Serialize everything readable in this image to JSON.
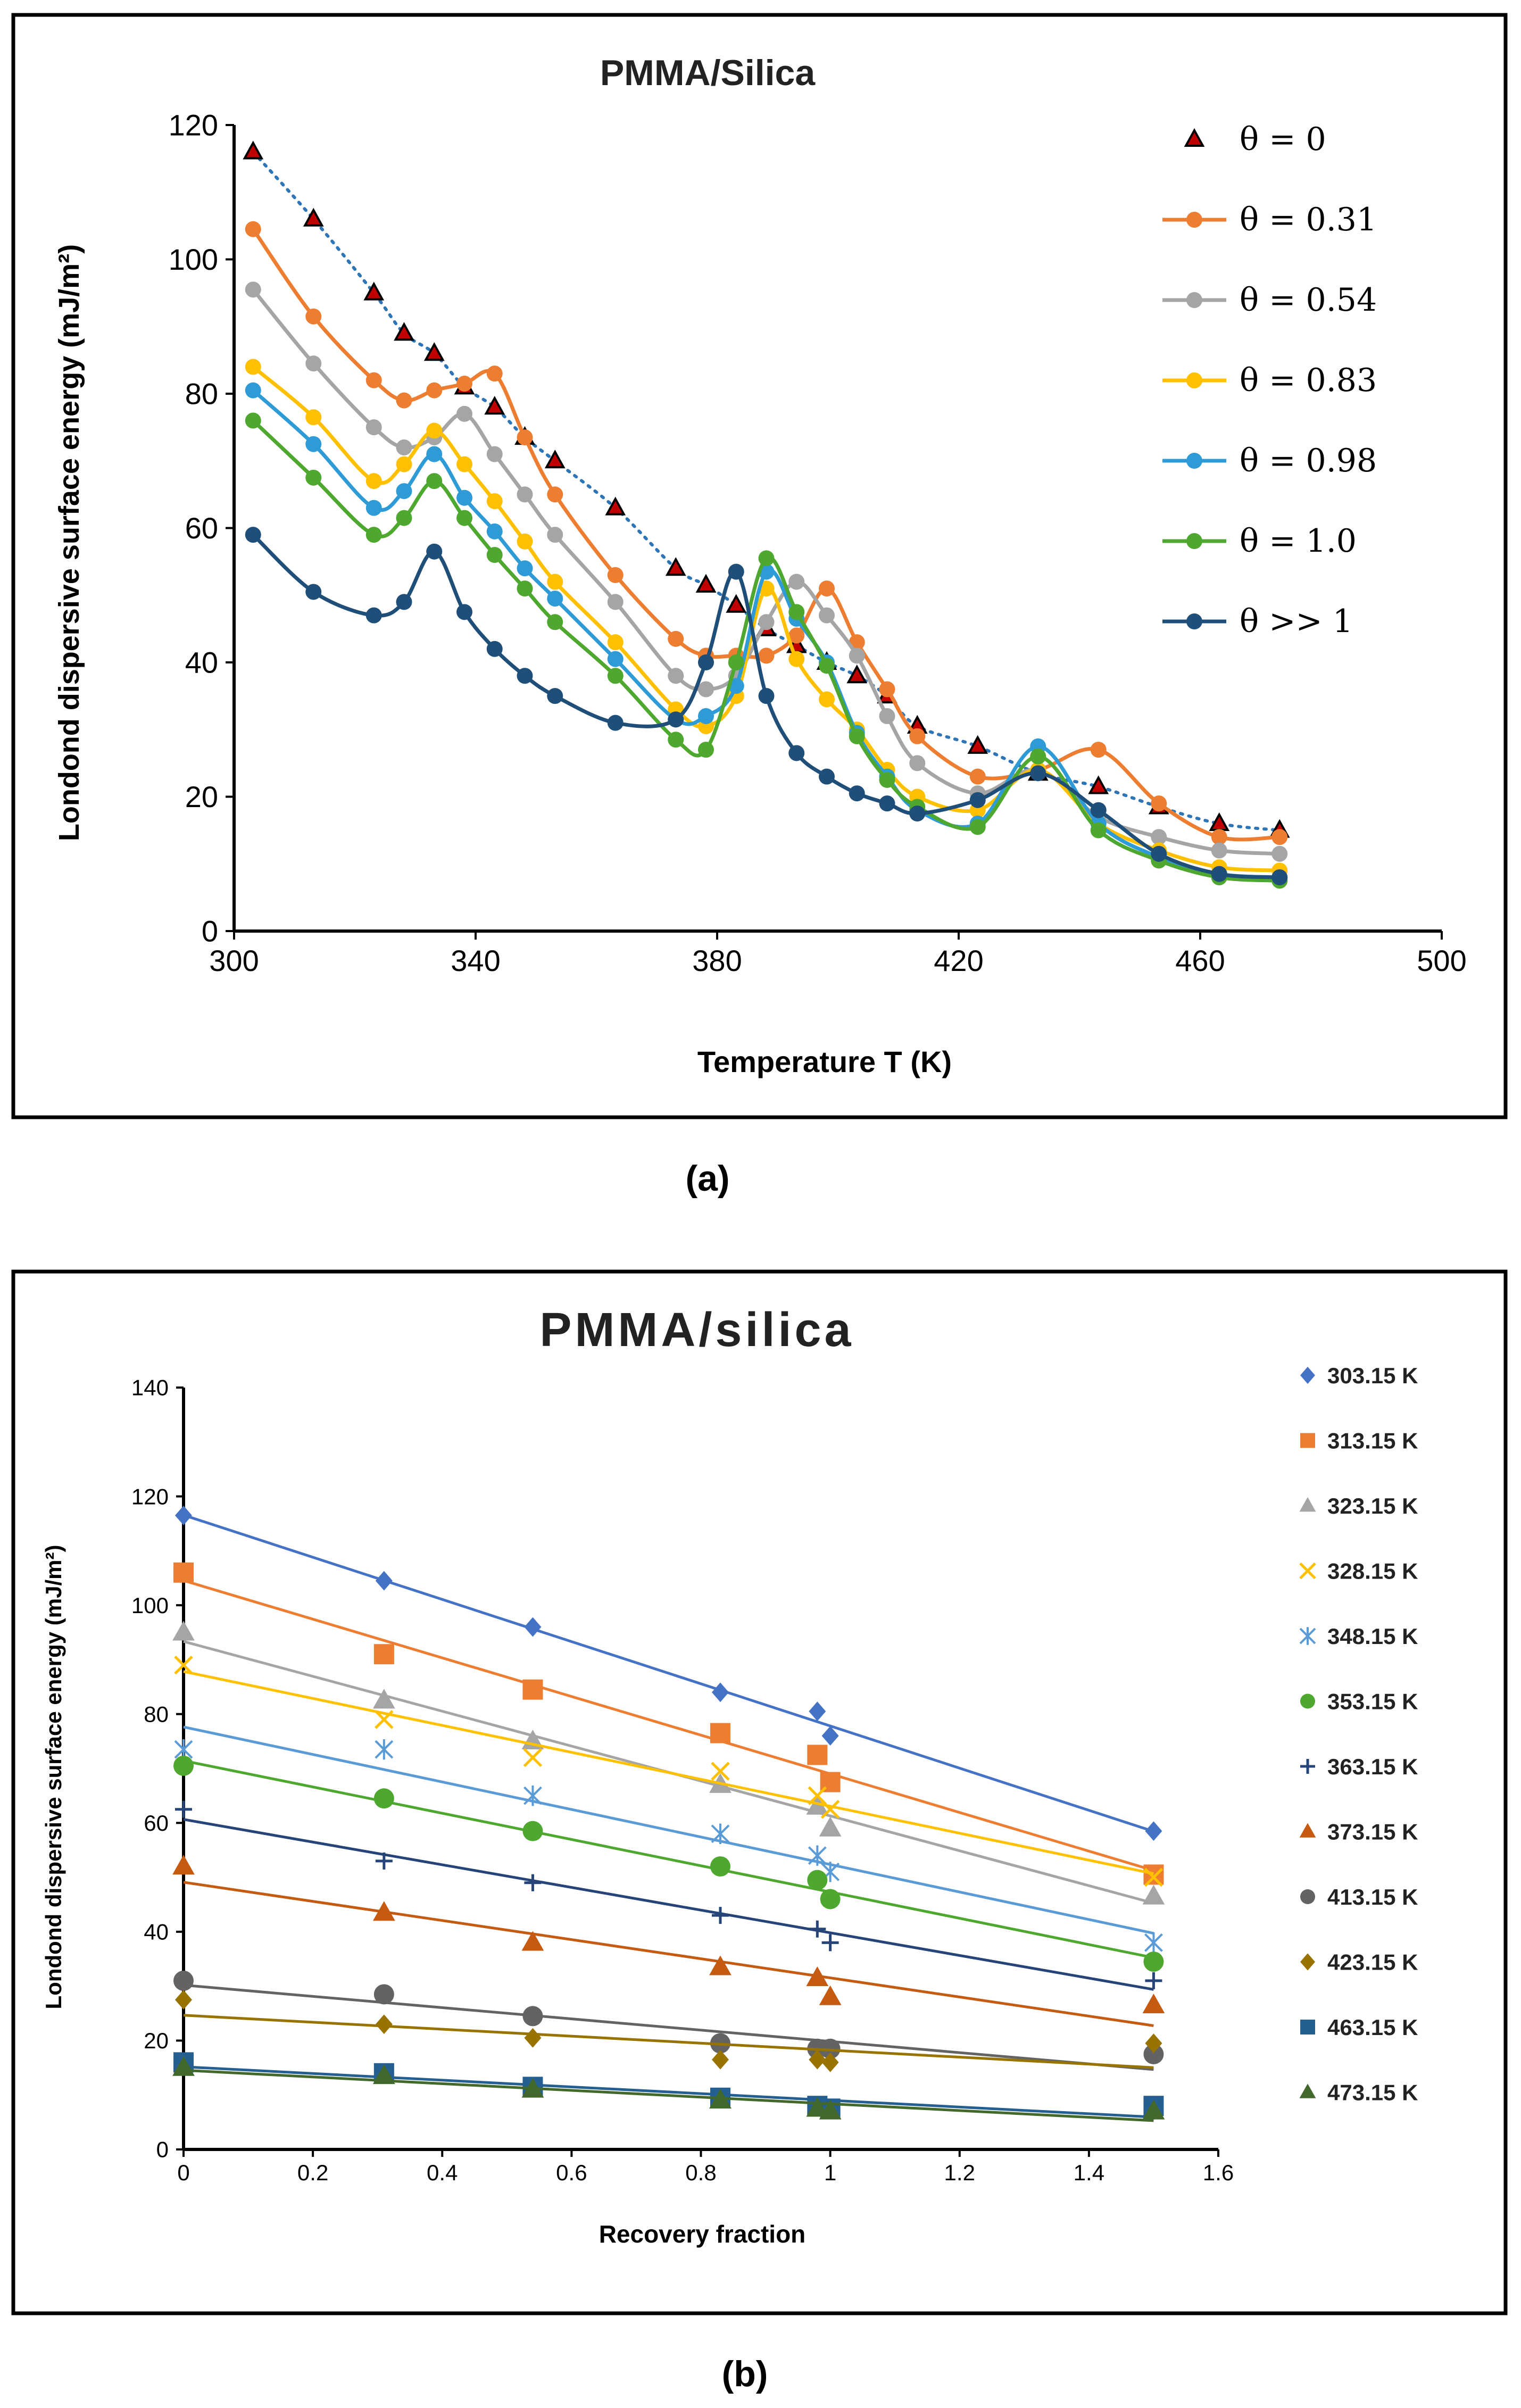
{
  "chart_data": [
    {
      "panel_label": "(a)",
      "type": "line",
      "title": "PMMA/Silica",
      "xlabel": "Temperature T (K)",
      "ylabel": "Londond dispersive surface energy (mJ/m²)",
      "xlim": [
        300,
        500
      ],
      "ylim": [
        0,
        120
      ],
      "x_ticks": [
        300,
        340,
        380,
        420,
        460,
        500
      ],
      "y_ticks": [
        0,
        20,
        40,
        60,
        80,
        100,
        120
      ],
      "legend_position": "right",
      "series": [
        {
          "name": "θ = 0",
          "color": "#c00000",
          "marker": "triangle",
          "line": "dotted-trend",
          "line_color": "#2e75b6",
          "x": [
            303.15,
            313.15,
            323.15,
            328.15,
            333.15,
            338.15,
            343.15,
            348.15,
            353.15,
            363.15,
            373.15,
            378.15,
            383.15,
            388.15,
            393.15,
            398.15,
            403.15,
            408.15,
            413.15,
            423.15,
            433.15,
            443.15,
            453.15,
            463.15,
            473.15
          ],
          "y": [
            116,
            106,
            95,
            89,
            86,
            81,
            78,
            73.5,
            70,
            63,
            54,
            51.5,
            48.5,
            45,
            42.5,
            40,
            38,
            35,
            30.5,
            27.5,
            23.5,
            21.5,
            18.5,
            16,
            15
          ]
        },
        {
          "name": "θ = 0.31",
          "color": "#ed7d31",
          "marker": "circle",
          "x": [
            303.15,
            313.15,
            323.15,
            328.15,
            333.15,
            338.15,
            343.15,
            348.15,
            353.15,
            363.15,
            373.15,
            378.15,
            383.15,
            388.15,
            393.15,
            398.15,
            403.15,
            408.15,
            413.15,
            423.15,
            433.15,
            443.15,
            453.15,
            463.15,
            473.15
          ],
          "y": [
            104.5,
            91.5,
            82,
            79,
            80.5,
            81.5,
            83,
            73.5,
            65,
            53,
            43.5,
            41,
            41,
            41,
            44,
            51,
            43,
            36,
            29,
            23,
            24,
            27,
            19,
            14,
            14
          ]
        },
        {
          "name": "θ = 0.54",
          "color": "#a5a5a5",
          "marker": "circle",
          "x": [
            303.15,
            313.15,
            323.15,
            328.15,
            333.15,
            338.15,
            343.15,
            348.15,
            353.15,
            363.15,
            373.15,
            378.15,
            383.15,
            388.15,
            393.15,
            398.15,
            403.15,
            408.15,
            413.15,
            423.15,
            433.15,
            443.15,
            453.15,
            463.15,
            473.15
          ],
          "y": [
            95.5,
            84.5,
            75,
            72,
            73.5,
            77,
            71,
            65,
            59,
            49,
            38,
            36,
            38,
            46,
            52,
            47,
            41,
            32,
            25,
            20.5,
            24,
            17,
            14,
            12,
            11.5
          ]
        },
        {
          "name": "θ = 0.83",
          "color": "#ffc000",
          "marker": "circle",
          "x": [
            303.15,
            313.15,
            323.15,
            328.15,
            333.15,
            338.15,
            343.15,
            348.15,
            353.15,
            363.15,
            373.15,
            378.15,
            383.15,
            388.15,
            393.15,
            398.15,
            403.15,
            408.15,
            413.15,
            423.15,
            433.15,
            443.15,
            453.15,
            463.15,
            473.15
          ],
          "y": [
            84,
            76.5,
            67,
            69.5,
            74.5,
            69.5,
            64,
            58,
            52,
            43,
            33,
            30.5,
            35,
            51,
            40.5,
            34.5,
            30,
            24,
            20,
            18,
            24,
            16,
            12,
            9.5,
            9
          ]
        },
        {
          "name": "θ = 0.98",
          "color": "#2e9bd6",
          "marker": "circle",
          "x": [
            303.15,
            313.15,
            323.15,
            328.15,
            333.15,
            338.15,
            343.15,
            348.15,
            353.15,
            363.15,
            373.15,
            378.15,
            383.15,
            388.15,
            393.15,
            398.15,
            403.15,
            408.15,
            413.15,
            423.15,
            433.15,
            443.15,
            453.15,
            463.15,
            473.15
          ],
          "y": [
            80.5,
            72.5,
            63,
            65.5,
            71,
            64.5,
            59.5,
            54,
            49.5,
            40.5,
            31.5,
            32,
            36.5,
            53.5,
            46.5,
            40,
            29.5,
            23,
            18,
            16,
            27.5,
            16,
            11,
            8.5,
            8
          ]
        },
        {
          "name": "θ = 1.0",
          "color": "#4ea72e",
          "marker": "circle",
          "x": [
            303.15,
            313.15,
            323.15,
            328.15,
            333.15,
            338.15,
            343.15,
            348.15,
            353.15,
            363.15,
            373.15,
            378.15,
            383.15,
            388.15,
            393.15,
            398.15,
            403.15,
            408.15,
            413.15,
            423.15,
            433.15,
            443.15,
            453.15,
            463.15,
            473.15
          ],
          "y": [
            76,
            67.5,
            59,
            61.5,
            67,
            61.5,
            56,
            51,
            46,
            38,
            28.5,
            27,
            40,
            55.5,
            47.5,
            39.5,
            29,
            22.5,
            18.5,
            15.5,
            26,
            15,
            10.5,
            8,
            7.5
          ]
        },
        {
          "name": "θ >> 1",
          "color": "#1f4e79",
          "marker": "circle",
          "x": [
            303.15,
            313.15,
            323.15,
            328.15,
            333.15,
            338.15,
            343.15,
            348.15,
            353.15,
            363.15,
            373.15,
            378.15,
            383.15,
            388.15,
            393.15,
            398.15,
            403.15,
            408.15,
            413.15,
            423.15,
            433.15,
            443.15,
            453.15,
            463.15,
            473.15
          ],
          "y": [
            59,
            50.5,
            47,
            49,
            56.5,
            47.5,
            42,
            38,
            35,
            31,
            31.5,
            40,
            53.5,
            35,
            26.5,
            23,
            20.5,
            19,
            17.5,
            19.5,
            23.5,
            18,
            11.5,
            8.5,
            8
          ]
        }
      ]
    },
    {
      "panel_label": "(b)",
      "type": "scatter",
      "title": "PMMA/silica",
      "xlabel": "Recovery fraction",
      "ylabel": "Londond dispersive surface energy (mJ/m²)",
      "xlim": [
        0,
        1.6
      ],
      "ylim": [
        0,
        140
      ],
      "x_ticks": [
        0,
        0.2,
        0.4,
        0.6,
        0.8,
        1,
        1.2,
        1.4,
        1.6
      ],
      "y_ticks": [
        0,
        20,
        40,
        60,
        80,
        100,
        120,
        140
      ],
      "legend_position": "right",
      "trendline": "linear",
      "x": [
        0,
        0.31,
        0.54,
        0.83,
        0.98,
        1.0,
        1.5
      ],
      "series": [
        {
          "name": "303.15 K",
          "color": "#4472c4",
          "marker": "diamond",
          "y": [
            116.5,
            104.5,
            96,
            84,
            80.5,
            76,
            58.5
          ]
        },
        {
          "name": "313.15 K",
          "color": "#ed7d31",
          "marker": "square",
          "y": [
            106,
            91,
            84.5,
            76.5,
            72.5,
            67.5,
            50.5
          ]
        },
        {
          "name": "323.15 K",
          "color": "#a5a5a5",
          "marker": "triangle",
          "y": [
            95,
            82.5,
            75,
            67,
            63,
            59,
            46.5
          ]
        },
        {
          "name": "328.15 K",
          "color": "#ffc000",
          "marker": "x",
          "y": [
            89,
            79,
            72,
            69.5,
            65,
            62.5,
            50
          ]
        },
        {
          "name": "348.15 K",
          "color": "#5b9bd5",
          "marker": "star",
          "y": [
            73.5,
            73.5,
            65,
            58,
            54,
            51,
            38
          ]
        },
        {
          "name": "353.15 K",
          "color": "#4ea72e",
          "marker": "circle",
          "y": [
            70.5,
            64.5,
            58.5,
            52,
            49.5,
            46,
            34.5
          ]
        },
        {
          "name": "363.15 K",
          "color": "#264478",
          "marker": "plus",
          "y": [
            62.5,
            53,
            49,
            43,
            40.5,
            38,
            31
          ]
        },
        {
          "name": "373.15 K",
          "color": "#c55a11",
          "marker": "triangle",
          "y": [
            52,
            43.5,
            38,
            33.5,
            31.5,
            28,
            26.5
          ]
        },
        {
          "name": "413.15 K",
          "color": "#636363",
          "marker": "circle",
          "y": [
            31,
            28.5,
            24.5,
            19.5,
            18.5,
            18.5,
            17.5
          ]
        },
        {
          "name": "423.15 K",
          "color": "#997300",
          "marker": "diamond",
          "y": [
            27.5,
            23,
            20.5,
            16.5,
            16.5,
            16,
            19.5
          ]
        },
        {
          "name": "463.15 K",
          "color": "#255e91",
          "marker": "square",
          "y": [
            16,
            14,
            11.5,
            9.5,
            8,
            7.5,
            8
          ]
        },
        {
          "name": "473.15 K",
          "color": "#43682b",
          "marker": "triangle",
          "y": [
            15,
            13.5,
            11,
            9,
            7.5,
            7,
            7
          ]
        }
      ]
    }
  ]
}
